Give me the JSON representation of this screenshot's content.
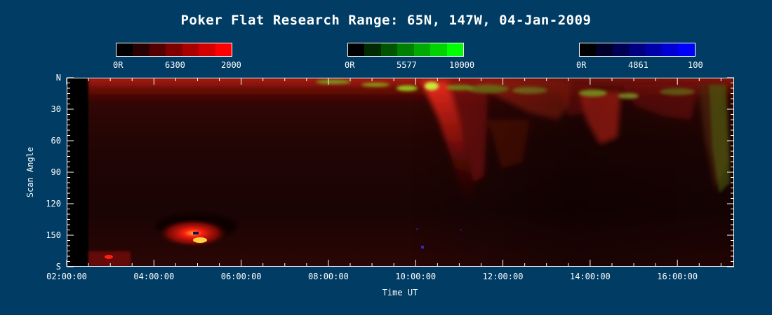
{
  "title": "Poker Flat Research Range: 65N, 147W, 04-Jan-2009",
  "colorbars": [
    {
      "min_label": "0R",
      "wavelength": "6300",
      "max_label": "2000",
      "colors": [
        "#000000",
        "#2a0000",
        "#550000",
        "#800000",
        "#aa0000",
        "#d40000",
        "#ff0000"
      ]
    },
    {
      "min_label": "0R",
      "wavelength": "5577",
      "max_label": "10000",
      "colors": [
        "#000000",
        "#002a00",
        "#005500",
        "#008000",
        "#00aa00",
        "#00d400",
        "#00ff00"
      ]
    },
    {
      "min_label": "0R",
      "wavelength": "4861",
      "max_label": "100",
      "colors": [
        "#000000",
        "#00002a",
        "#000055",
        "#000080",
        "#0000aa",
        "#0000d4",
        "#0000ff"
      ]
    }
  ],
  "chart_data": {
    "type": "heatmap",
    "title": "Poker Flat Research Range: 65N, 147W, 04-Jan-2009",
    "xlabel": "Time UT",
    "ylabel": "Scan Angle",
    "x_tick_labels": [
      "02:00:00",
      "04:00:00",
      "06:00:00",
      "08:00:00",
      "10:00:00",
      "12:00:00",
      "14:00:00",
      "16:00:00"
    ],
    "x_ticks_hours": [
      2,
      4,
      6,
      8,
      10,
      12,
      14,
      16
    ],
    "xlim_hours": [
      2.0,
      17.3
    ],
    "y_tick_labels": [
      "N",
      "30",
      "60",
      "90",
      "120",
      "150",
      "S"
    ],
    "y_ticks": [
      0,
      30,
      60,
      90,
      120,
      150,
      180
    ],
    "ylim": [
      0,
      180
    ],
    "data_start_hours": 2.5,
    "channels": [
      {
        "name": "6300",
        "color": "#ff0000",
        "max": 2000,
        "unit": "R"
      },
      {
        "name": "5577",
        "color": "#00ff00",
        "max": 10000,
        "unit": "R"
      },
      {
        "name": "4861",
        "color": "#0000ff",
        "max": 100,
        "unit": "R"
      }
    ]
  }
}
